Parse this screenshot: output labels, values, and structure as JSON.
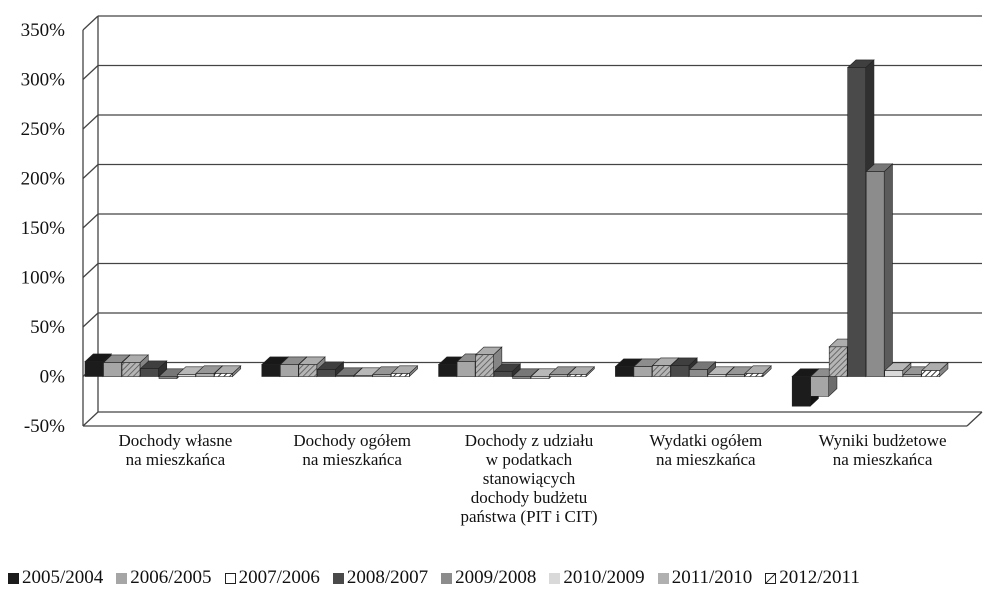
{
  "chart_data": {
    "type": "bar",
    "title": "",
    "xlabel": "",
    "ylabel": "",
    "ylim": [
      -50,
      350
    ],
    "yticks": [
      "-50%",
      "0%",
      "50%",
      "100%",
      "150%",
      "200%",
      "250%",
      "300%",
      "350%"
    ],
    "ytick_values": [
      -50,
      0,
      50,
      100,
      150,
      200,
      250,
      300,
      350
    ],
    "grid": true,
    "legend_position": "bottom",
    "categories": [
      "Dochody własne na mieszkańca",
      "Dochody ogółem na mieszkańca",
      "Dochody z udziału w podatkach stanowiących dochody budżetu państwa (PIT i CIT)",
      "Wydatki ogółem na mieszkańca",
      "Wyniki budżetowe na mieszkańca"
    ],
    "category_lines": [
      [
        "Dochody własne",
        "na mieszkańca"
      ],
      [
        "Dochody ogółem",
        "na mieszkańca"
      ],
      [
        "Dochody z udziału",
        "w podatkach",
        "stanowiących",
        "dochody budżetu",
        "państwa (PIT i CIT)"
      ],
      [
        "Wydatki ogółem",
        "na mieszkańca"
      ],
      [
        "Wyniki budżetowe",
        "na mieszkańca"
      ]
    ],
    "series": [
      {
        "name": "2005/2004",
        "color": "#1c1c1c",
        "values": [
          15,
          12,
          12,
          10,
          -30
        ]
      },
      {
        "name": "2006/2005",
        "color": "#a6a6a6",
        "values": [
          14,
          12,
          15,
          10,
          -20
        ]
      },
      {
        "name": "2007/2006",
        "color": "#ffffff",
        "values": [
          14,
          12,
          22,
          11,
          30
        ]
      },
      {
        "name": "2008/2007",
        "color": "#4a4a4a",
        "values": [
          8,
          7,
          5,
          11,
          312
        ]
      },
      {
        "name": "2009/2008",
        "color": "#8c8c8c",
        "values": [
          -2,
          1,
          -2,
          7,
          207
        ]
      },
      {
        "name": "2010/2009",
        "color": "#d9d9d9",
        "values": [
          2,
          1,
          -2,
          2,
          6
        ]
      },
      {
        "name": "2011/2010",
        "color": "#b0b0b0",
        "values": [
          3,
          2,
          2,
          2,
          2
        ]
      },
      {
        "name": "2012/2011",
        "color": "#ffffff",
        "values": [
          3,
          3,
          2,
          3,
          6
        ]
      }
    ]
  }
}
